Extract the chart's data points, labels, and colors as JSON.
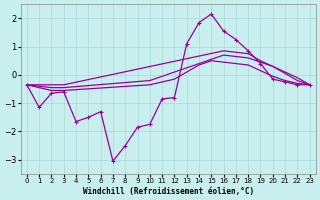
{
  "xlabel": "Windchill (Refroidissement éolien,°C)",
  "background_color": "#c8eeee",
  "grid_color": "#a8d8d8",
  "line_color": "#990099",
  "x_main": [
    0,
    1,
    2,
    3,
    4,
    5,
    6,
    7,
    8,
    9,
    10,
    11,
    12,
    13,
    14,
    15,
    16,
    17,
    18,
    19,
    20,
    21,
    22,
    23
  ],
  "y_main": [
    -0.35,
    -1.15,
    -0.65,
    -0.6,
    -1.65,
    -1.5,
    -1.3,
    -3.05,
    -2.5,
    -1.85,
    -1.75,
    -0.85,
    -0.8,
    1.1,
    1.85,
    2.15,
    1.55,
    1.25,
    0.85,
    0.4,
    -0.15,
    -0.25,
    -0.35,
    -0.35
  ],
  "x_s2": [
    0,
    2,
    3,
    10,
    12,
    14,
    15,
    16,
    17,
    18,
    19,
    20,
    21,
    22,
    23
  ],
  "y_s2": [
    -0.35,
    -0.55,
    -0.55,
    -0.35,
    -0.15,
    0.35,
    0.5,
    0.45,
    0.4,
    0.35,
    0.15,
    -0.05,
    -0.2,
    -0.3,
    -0.35
  ],
  "x_s3": [
    0,
    2,
    3,
    10,
    16,
    17,
    18,
    20,
    21,
    22,
    23
  ],
  "y_s3": [
    -0.35,
    -0.45,
    -0.45,
    -0.2,
    0.7,
    0.65,
    0.6,
    0.3,
    0.1,
    -0.1,
    -0.35
  ],
  "x_s4": [
    0,
    2,
    3,
    16,
    17,
    18,
    19,
    20,
    21,
    22,
    23
  ],
  "y_s4": [
    -0.35,
    -0.35,
    -0.35,
    0.85,
    0.8,
    0.75,
    0.5,
    0.3,
    0.05,
    -0.2,
    -0.35
  ],
  "ylim": [
    -3.5,
    2.5
  ],
  "yticks": [
    -3,
    -2,
    -1,
    0,
    1,
    2
  ],
  "xticks": [
    0,
    1,
    2,
    3,
    4,
    5,
    6,
    7,
    8,
    9,
    10,
    11,
    12,
    13,
    14,
    15,
    16,
    17,
    18,
    19,
    20,
    21,
    22,
    23
  ]
}
